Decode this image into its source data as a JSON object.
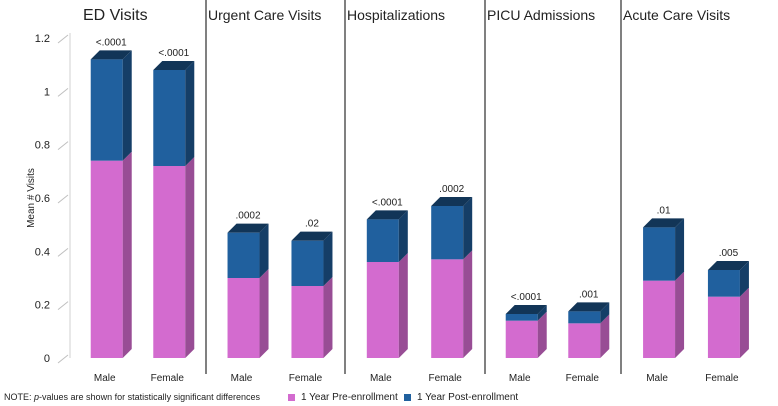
{
  "chart_data": {
    "type": "bar",
    "stacked": true,
    "style": "3d",
    "ylabel": "Mean # Visits",
    "ylim": [
      0,
      1.2
    ],
    "yticks": [
      "0",
      "0.2",
      "0.4",
      "0.6",
      "0.8",
      "1",
      "1.2"
    ],
    "series": [
      {
        "name": "1 Year Pre-enrollment",
        "color": "#d36bcf"
      },
      {
        "name": "1 Year Post-enrollment",
        "color": "#20609e"
      }
    ],
    "panels": [
      {
        "title": "ED Visits",
        "bars": [
          {
            "label": "Male",
            "pre": 0.74,
            "post": 0.38,
            "pvalue": "<.0001"
          },
          {
            "label": "Female",
            "pre": 0.72,
            "post": 0.36,
            "pvalue": "<.0001"
          }
        ]
      },
      {
        "title": "Urgent Care Visits",
        "bars": [
          {
            "label": "Male",
            "pre": 0.3,
            "post": 0.17,
            "pvalue": ".0002"
          },
          {
            "label": "Female",
            "pre": 0.27,
            "post": 0.17,
            "pvalue": ".02"
          }
        ]
      },
      {
        "title": "Hospitalizations",
        "bars": [
          {
            "label": "Male",
            "pre": 0.36,
            "post": 0.16,
            "pvalue": "<.0001"
          },
          {
            "label": "Female",
            "pre": 0.37,
            "post": 0.2,
            "pvalue": ".0002"
          }
        ]
      },
      {
        "title": "PICU Admissions",
        "bars": [
          {
            "label": "Male",
            "pre": 0.14,
            "post": 0.025,
            "pvalue": "<.0001"
          },
          {
            "label": "Female",
            "pre": 0.13,
            "post": 0.045,
            "pvalue": ".001"
          }
        ]
      },
      {
        "title": "Acute Care Visits",
        "bars": [
          {
            "label": "Male",
            "pre": 0.29,
            "post": 0.2,
            "pvalue": ".01"
          },
          {
            "label": "Female",
            "pre": 0.23,
            "post": 0.1,
            "pvalue": ".005"
          }
        ]
      }
    ]
  },
  "footnote": {
    "prefix": "NOTE: ",
    "italic": "p",
    "suffix": "-values are shown for statistically significant differences"
  }
}
